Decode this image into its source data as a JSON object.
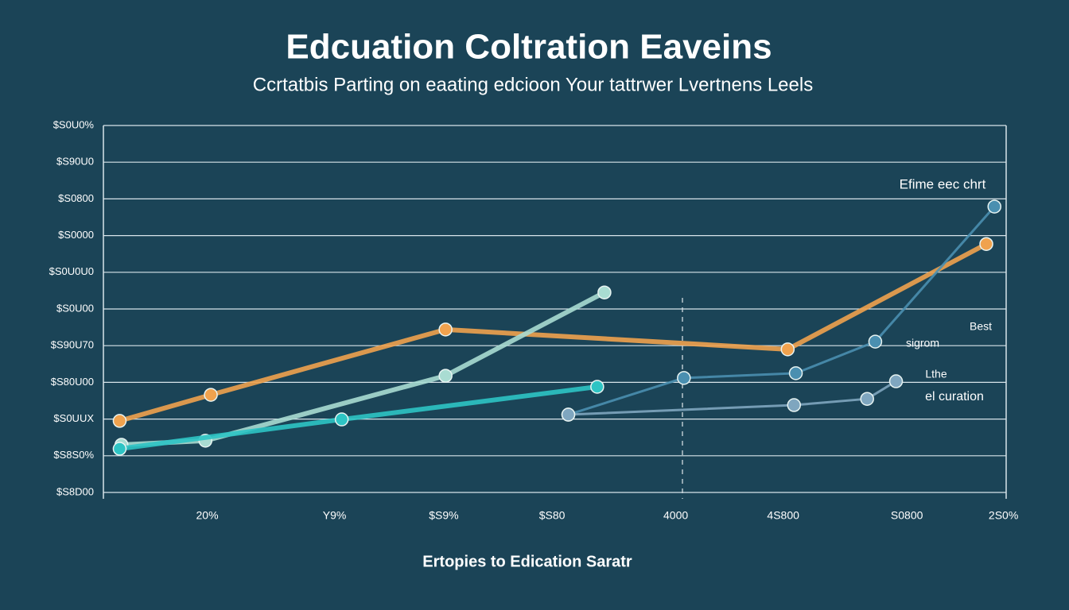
{
  "chart_data": {
    "type": "line",
    "title": "Edcuation Coltration Eaveins",
    "subtitle": "Ccrtatbis Parting on eaating edcioon Your tattrwer Lvertnens Leels",
    "x_label": "Ertopies to Edication Saratr",
    "annotations": [
      "Efime eec chrt",
      "Best",
      "sigrom",
      "Lthe",
      "el curation"
    ],
    "xlim": [
      0,
      100
    ],
    "xticks": [
      {
        "value": 11.5,
        "label": "20%"
      },
      {
        "value": 25.6,
        "label": "Y9%"
      },
      {
        "value": 37.7,
        "label": "$S9%"
      },
      {
        "value": 49.7,
        "label": "$S80"
      },
      {
        "value": 63.4,
        "label": "4000"
      },
      {
        "value": 75.3,
        "label": "4S800"
      },
      {
        "value": 89,
        "label": "S0800"
      },
      {
        "value": 99.7,
        "label": "2S0%"
      }
    ],
    "ylim": [
      0,
      10
    ],
    "yticks": [
      {
        "value": 0,
        "label": "$S8D00"
      },
      {
        "value": 1,
        "label": "$S8S0%"
      },
      {
        "value": 2,
        "label": "$S0UUX"
      },
      {
        "value": 3,
        "label": "$S80U00"
      },
      {
        "value": 4,
        "label": "$S90U70"
      },
      {
        "value": 5,
        "label": "$S0U00"
      },
      {
        "value": 6,
        "label": "$S0U0U0"
      },
      {
        "value": 7,
        "label": "$S0000"
      },
      {
        "value": 8,
        "label": "$S0800"
      },
      {
        "value": 9,
        "label": "$S90U0"
      },
      {
        "value": 10,
        "label": "$S0U0%"
      }
    ],
    "grid": true,
    "series": [
      {
        "color": "#f0a24e",
        "x": [
          1.8,
          11.9,
          37.9,
          75.8,
          97.8
        ],
        "values": [
          1.95,
          2.66,
          4.44,
          3.9,
          6.77
        ]
      },
      {
        "color": "#a9dcd2",
        "x": [
          2.0,
          11.3,
          37.9,
          55.5
        ],
        "values": [
          1.3,
          1.41,
          3.18,
          5.45
        ]
      },
      {
        "color": "#2ec4c4",
        "x": [
          1.8,
          26.4,
          54.7
        ],
        "values": [
          1.19,
          1.99,
          2.88
        ]
      },
      {
        "color": "#4a8fb0",
        "x": [
          51.5,
          64.3,
          76.7,
          85.5,
          98.7
        ],
        "values": [
          2.12,
          3.12,
          3.25,
          4.11,
          7.79
        ]
      },
      {
        "color": "#7fa6bf",
        "x": [
          51.5,
          76.5,
          84.6,
          87.8
        ],
        "values": [
          2.12,
          2.38,
          2.55,
          3.03
        ]
      }
    ]
  }
}
